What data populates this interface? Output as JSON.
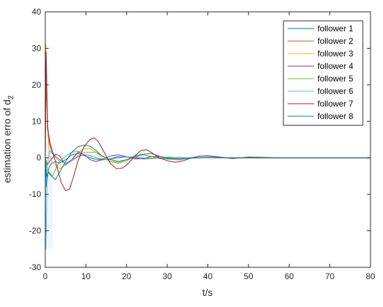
{
  "chart_data": {
    "type": "line",
    "xlabel": "t/s",
    "ylabel": "estimation erro of d",
    "ylabel_subscript": "2",
    "xlim": [
      0,
      80
    ],
    "ylim": [
      -30,
      40
    ],
    "xticks": [
      0,
      10,
      20,
      30,
      40,
      50,
      60,
      70,
      80
    ],
    "yticks": [
      -30,
      -20,
      -10,
      0,
      10,
      20,
      30,
      40
    ],
    "grid": false,
    "legend_position": "top-right",
    "series": [
      {
        "name": "follower 1",
        "color": "#0072BD",
        "x": [
          0,
          0.3,
          0.8,
          1.5,
          2.5,
          3.5,
          5,
          6.5,
          8,
          9.5,
          11,
          12.5,
          14,
          16,
          18,
          20,
          22,
          24,
          26,
          28,
          30,
          33,
          36,
          40,
          45,
          50,
          55,
          60,
          70,
          80
        ],
        "y": [
          0,
          -8,
          -3,
          -1.5,
          -1,
          -1.5,
          -0.5,
          0.8,
          1.2,
          0.6,
          0,
          -0.4,
          -0.6,
          -0.2,
          0.3,
          0.2,
          0,
          -0.3,
          -0.2,
          0,
          0.2,
          0,
          -0.1,
          0.1,
          0,
          0,
          0,
          0,
          0,
          0
        ]
      },
      {
        "name": "follower 2",
        "color": "#D95319",
        "x": [
          0,
          0.15,
          0.5,
          1,
          1.6,
          2.5,
          3.5,
          5,
          6.5,
          8,
          9.5,
          11,
          12.5,
          14,
          16,
          18,
          20,
          22,
          24,
          26,
          28,
          30,
          33,
          36,
          40,
          45,
          50,
          55,
          60,
          70,
          80
        ],
        "y": [
          0,
          20,
          10,
          4,
          1.5,
          0.5,
          -0.5,
          -1.5,
          -0.8,
          0.3,
          0.9,
          0.6,
          0,
          -0.5,
          -0.4,
          0,
          0.3,
          0.2,
          0,
          -0.2,
          -0.1,
          0,
          0.1,
          0,
          0,
          0,
          0,
          0,
          0,
          0,
          0
        ]
      },
      {
        "name": "follower 3",
        "color": "#EDB120",
        "x": [
          0,
          0.15,
          0.5,
          1,
          1.6,
          2.5,
          3.5,
          5,
          6.5,
          8,
          9.5,
          11,
          12.5,
          14,
          16,
          18,
          20,
          22,
          24,
          26,
          28,
          30,
          33,
          36,
          40,
          45,
          50,
          55,
          60,
          70,
          80
        ],
        "y": [
          0,
          31,
          8,
          1,
          -1,
          -2,
          -3,
          -2,
          -0.5,
          1.5,
          2.5,
          2.5,
          1.5,
          0,
          -1,
          -1.2,
          -0.5,
          0.3,
          0.8,
          0.5,
          0,
          -0.3,
          -0.2,
          0,
          0.1,
          0,
          0,
          0,
          0,
          0,
          0
        ]
      },
      {
        "name": "follower 4",
        "color": "#7E2F8E",
        "x": [
          0,
          0.5,
          1,
          1.8,
          2.6,
          3.5,
          5,
          6.5,
          8,
          9.5,
          11,
          12.5,
          14,
          16,
          18,
          20,
          22,
          24,
          26,
          28,
          30,
          33,
          36,
          40,
          45,
          50,
          55,
          60,
          70,
          80
        ],
        "y": [
          0,
          -2,
          -1,
          0,
          1,
          0.5,
          -2,
          -0.5,
          1.5,
          1,
          -0.5,
          -1,
          -0.5,
          0.5,
          0.8,
          0.3,
          -0.3,
          -0.2,
          0.3,
          0.4,
          0,
          -0.2,
          0,
          0.1,
          0,
          0,
          0,
          0,
          0,
          0
        ]
      },
      {
        "name": "follower 5",
        "color": "#77AC30",
        "x": [
          0,
          0.5,
          1,
          1.8,
          2.6,
          3.5,
          5,
          6.5,
          8,
          9.5,
          11,
          12.5,
          14,
          16,
          18,
          20,
          22,
          24,
          26,
          28,
          30,
          33,
          36,
          40,
          45,
          50,
          55,
          60,
          70,
          80
        ],
        "y": [
          0,
          -3,
          -4,
          -5,
          -3,
          -1,
          0.5,
          1.5,
          1.8,
          1.5,
          1.5,
          1.5,
          0.5,
          -1,
          -1.5,
          -0.8,
          0.3,
          0.8,
          0.4,
          -0.2,
          -0.3,
          0,
          0.1,
          0,
          0,
          0,
          0,
          0,
          0,
          0
        ]
      },
      {
        "name": "follower 6",
        "color": "#4DBEEE",
        "x": [
          0,
          0.15,
          0.5,
          1,
          1.8,
          2.6,
          3.5,
          5,
          6.5,
          8,
          9.5,
          11,
          12.5,
          14,
          16,
          18,
          20,
          22,
          24,
          26,
          28,
          30,
          33,
          36,
          40,
          45,
          50,
          55,
          60,
          70,
          80
        ],
        "y": [
          0,
          -25,
          -2,
          2,
          1,
          0,
          -1,
          -1.5,
          -0.5,
          0.5,
          1,
          0.5,
          0,
          -0.3,
          -0.2,
          0,
          0.2,
          0.1,
          0,
          -0.1,
          0,
          0.1,
          0,
          0,
          0,
          0,
          0,
          0,
          0,
          0,
          0
        ]
      },
      {
        "name": "follower 7",
        "color": "#A2142F",
        "x": [
          0,
          0.2,
          0.6,
          1.2,
          2,
          3,
          4,
          5,
          6,
          7,
          8,
          9.5,
          11,
          12,
          13,
          14.5,
          16,
          17.5,
          19,
          20.5,
          22,
          23.5,
          25,
          26.5,
          28,
          30,
          32,
          34,
          36,
          38,
          40,
          43,
          46,
          50,
          55,
          60,
          65,
          70,
          80
        ],
        "y": [
          0,
          29,
          8,
          4,
          1,
          -3,
          -7,
          -9,
          -8.5,
          -5,
          -1,
          3,
          5,
          5.5,
          4.5,
          1.5,
          -1.5,
          -3,
          -2.8,
          -1.5,
          0.5,
          2,
          2.2,
          1.2,
          0,
          -0.8,
          -1.2,
          -0.8,
          0,
          0.5,
          0.6,
          0.2,
          -0.2,
          0.2,
          0.1,
          0,
          0,
          0,
          0
        ]
      },
      {
        "name": "follower 8",
        "color": "#007F7F",
        "x": [
          0,
          0.3,
          0.8,
          1.5,
          2.5,
          3.5,
          5,
          6.5,
          8,
          9.5,
          11,
          12.5,
          14,
          16,
          18,
          20,
          22,
          24,
          26,
          28,
          30,
          33,
          36,
          40,
          45,
          50,
          55,
          60,
          70,
          80
        ],
        "y": [
          0,
          -5,
          -4,
          -5,
          -6,
          -4,
          -1,
          1.5,
          3,
          3.5,
          3.2,
          2,
          0.5,
          -0.5,
          -1,
          -0.5,
          0.5,
          1,
          1.2,
          0.5,
          -0.3,
          -0.5,
          0,
          0.2,
          0,
          0,
          0,
          0,
          0,
          0
        ]
      }
    ]
  }
}
